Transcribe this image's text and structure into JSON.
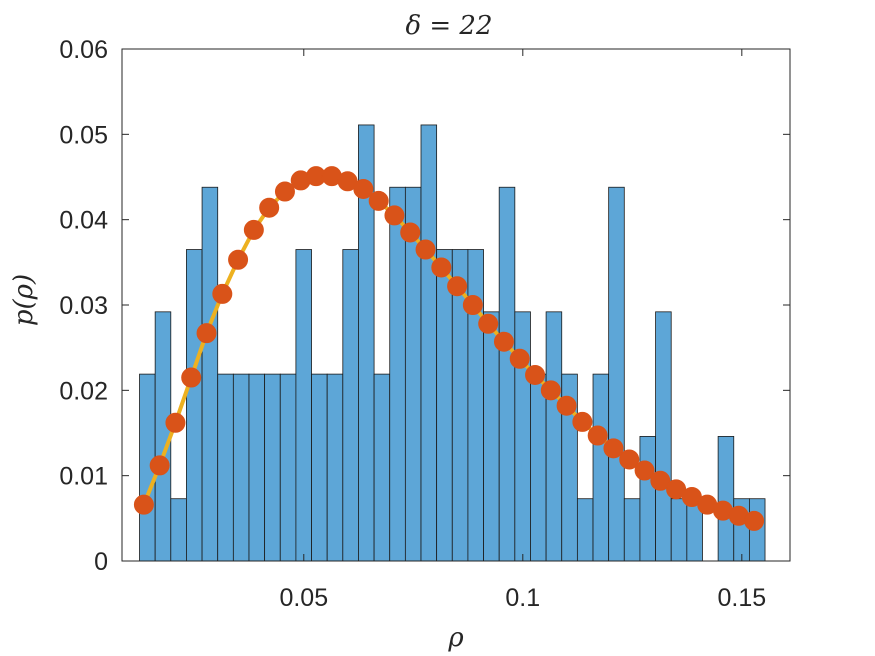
{
  "chart_data": {
    "type": "bar",
    "title": "δ = 22",
    "xlabel": "ρ",
    "ylabel": "p(ρ)",
    "xlim": [
      0.0085,
      0.161
    ],
    "ylim": [
      0,
      0.06
    ],
    "grid": false,
    "xticks": [
      0.05,
      0.1,
      0.15
    ],
    "xtick_labels": [
      "0.05",
      "0.1",
      "0.15"
    ],
    "yticks": [
      0,
      0.01,
      0.02,
      0.03,
      0.04,
      0.05,
      0.06
    ],
    "ytick_labels": [
      "0",
      "0.01",
      "0.02",
      "0.03",
      "0.04",
      "0.05",
      "0.06"
    ],
    "colors": {
      "bars": "#5DA6D7",
      "bar_edge": "#1a1a1a",
      "line": "#EDB120",
      "markers": "#D95319",
      "axis": "#262626"
    },
    "histogram": {
      "name": "histogram",
      "bin_start": 0.0125,
      "bin_width": 0.00357,
      "values": [
        0.0219,
        0.0292,
        0.0073,
        0.0365,
        0.0438,
        0.0219,
        0.0219,
        0.0219,
        0.0219,
        0.0219,
        0.0365,
        0.0219,
        0.0219,
        0.0365,
        0.0511,
        0.0219,
        0.0438,
        0.0438,
        0.0511,
        0.0365,
        0.0365,
        0.0365,
        0.0292,
        0.0438,
        0.0292,
        0.0219,
        0.0292,
        0.0219,
        0.0073,
        0.0219,
        0.0438,
        0.0073,
        0.0146,
        0.0292,
        0.0073,
        0.0073,
        0.0,
        0.0146,
        0.0073,
        0.0073
      ]
    },
    "fit_curve": {
      "name": "fit",
      "x": [
        0.0135,
        0.0171,
        0.0207,
        0.0243,
        0.0278,
        0.0314,
        0.035,
        0.0386,
        0.0421,
        0.0457,
        0.0493,
        0.0528,
        0.0564,
        0.06,
        0.0636,
        0.0671,
        0.0707,
        0.0743,
        0.0778,
        0.0814,
        0.085,
        0.0886,
        0.0921,
        0.0957,
        0.0993,
        0.1028,
        0.1064,
        0.11,
        0.1136,
        0.1171,
        0.1207,
        0.1243,
        0.1278,
        0.1314,
        0.135,
        0.1386,
        0.1421,
        0.1457,
        0.1493,
        0.1528
      ],
      "y": [
        0.0066,
        0.0112,
        0.0162,
        0.0215,
        0.0267,
        0.0313,
        0.0353,
        0.0388,
        0.0414,
        0.0433,
        0.0446,
        0.0451,
        0.0451,
        0.0445,
        0.0436,
        0.0422,
        0.0405,
        0.0385,
        0.0365,
        0.0344,
        0.0322,
        0.03,
        0.0278,
        0.0257,
        0.0237,
        0.0218,
        0.02,
        0.0182,
        0.0163,
        0.0147,
        0.0132,
        0.0119,
        0.0106,
        0.0094,
        0.0084,
        0.0075,
        0.0066,
        0.0059,
        0.0053,
        0.0047
      ]
    }
  }
}
